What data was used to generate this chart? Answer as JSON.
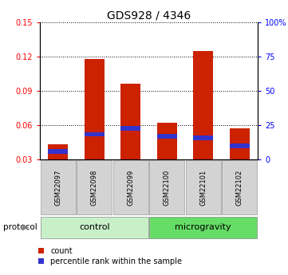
{
  "title": "GDS928 / 4346",
  "samples": [
    "GSM22097",
    "GSM22098",
    "GSM22099",
    "GSM22100",
    "GSM22101",
    "GSM22102"
  ],
  "count_values": [
    0.043,
    0.118,
    0.096,
    0.062,
    0.125,
    0.057
  ],
  "percentile_values": [
    0.037,
    0.052,
    0.057,
    0.05,
    0.049,
    0.042
  ],
  "groups": [
    {
      "label": "control",
      "start": 0,
      "end": 3,
      "color": "#c8f0c8"
    },
    {
      "label": "microgravity",
      "start": 3,
      "end": 6,
      "color": "#66dd66"
    }
  ],
  "ylim": [
    0.03,
    0.15
  ],
  "yticks_left": [
    0.03,
    0.06,
    0.09,
    0.12,
    0.15
  ],
  "yticks_right": [
    0,
    25,
    50,
    75,
    100
  ],
  "bar_color_red": "#cc2200",
  "bar_color_blue": "#3333cc",
  "bar_width": 0.55,
  "label_bg": "#d3d3d3",
  "control_color": "#c8f0c8",
  "microgravity_color": "#66dd66",
  "legend_count": "count",
  "legend_percentile": "percentile rank within the sample"
}
